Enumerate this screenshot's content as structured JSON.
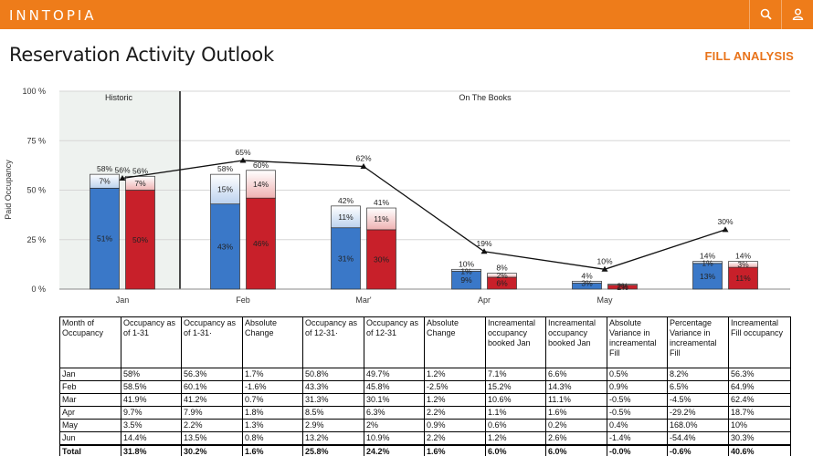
{
  "app": {
    "logo": "INNTOPIA",
    "search_icon": "search-icon",
    "user_icon": "user-icon",
    "brand_color": "#ee7c1a"
  },
  "page": {
    "title": "Reservation Activity Outlook",
    "fill_link": "FILL ANALYSIS"
  },
  "chart_data": {
    "type": "bar",
    "ylabel": "Paid Occupancy",
    "ylim": [
      0,
      100
    ],
    "yticks": [
      "0 %",
      "25 %",
      "50 %",
      "75 %",
      "100 %"
    ],
    "sections": [
      "Historic",
      "On The Books"
    ],
    "categories": [
      "Jan",
      "Feb",
      "Mar'",
      "Apr",
      "May",
      ""
    ],
    "series": [
      {
        "color": "#3a78c8",
        "stacks": [
          {
            "base": 51,
            "top": 7,
            "base_label": "51%",
            "top_label": "7%",
            "total_label": "58%"
          },
          {
            "base": 43,
            "top": 15,
            "base_label": "43%",
            "top_label": "15%",
            "total_label": "58%"
          },
          {
            "base": 31,
            "top": 11,
            "base_label": "31%",
            "top_label": "11%",
            "total_label": "42%"
          },
          {
            "base": 9,
            "top": 1,
            "base_label": "9%",
            "top_label": "1%",
            "total_label": "10%"
          },
          {
            "base": 3,
            "top": 1,
            "base_label": "",
            "top_label": "3%",
            "total_label": "4%"
          },
          {
            "base": 13,
            "top": 1,
            "base_label": "13%",
            "top_label": "1%",
            "total_label": "14%"
          }
        ]
      },
      {
        "color": "#c8202a",
        "stacks": [
          {
            "base": 50,
            "top": 7,
            "base_label": "50%",
            "top_label": "7%",
            "total_label": "56%"
          },
          {
            "base": 46,
            "top": 14,
            "base_label": "46%",
            "top_label": "14%",
            "total_label": "60%"
          },
          {
            "base": 30,
            "top": 11,
            "base_label": "30%",
            "top_label": "11%",
            "total_label": "41%"
          },
          {
            "base": 6,
            "top": 2,
            "base_label": "6%",
            "top_label": "2%",
            "total_label": "8%"
          },
          {
            "base": 2,
            "top": 0.5,
            "base_label": "2%",
            "top_label": "2%",
            "total_label": ""
          },
          {
            "base": 11,
            "top": 3,
            "base_label": "11%",
            "top_label": "3%",
            "total_label": "14%"
          }
        ]
      }
    ],
    "line": {
      "values": [
        56,
        65,
        62,
        19,
        10,
        30
      ],
      "labels": [
        "56%",
        "65%",
        "62%",
        "19%",
        "10%",
        "30%"
      ]
    }
  },
  "table": {
    "headers": [
      "Month of Occupancy",
      "Occupancy as of 1-31",
      "Occupancy as of 1-31·",
      "Absolute Change",
      "Occupancy as of 12-31·",
      "Occupancy as of 12-31",
      "Absolute Change",
      "Increamental occupancy booked Jan",
      "Increamental occupancy booked Jan",
      "Absolute Variance in increamental Fill",
      "Percentage Variance in increamental Fill",
      "Increamental Fill occupancy"
    ],
    "rows": [
      [
        "Jan",
        "58%",
        "56.3%",
        "1.7%",
        "50.8%",
        "49.7%",
        "1.2%",
        "7.1%",
        "6.6%",
        "0.5%",
        "8.2%",
        "56.3%"
      ],
      [
        "Feb",
        "58.5%",
        "60.1%",
        "-1.6%",
        "43.3%",
        "45.8%",
        "-2.5%",
        "15.2%",
        "14.3%",
        "0.9%",
        "6.5%",
        "64.9%"
      ],
      [
        "Mar",
        "41.9%",
        "41.2%",
        "0.7%",
        "31.3%",
        "30.1%",
        "1.2%",
        "10.6%",
        "11.1%",
        "-0.5%",
        "-4.5%",
        "62.4%"
      ],
      [
        "Apr",
        "9.7%",
        "7.9%",
        "1.8%",
        "8.5%",
        "6.3%",
        "2.2%",
        "1.1%",
        "1.6%",
        "-0.5%",
        "-29.2%",
        "18.7%"
      ],
      [
        "May",
        "3.5%",
        "2.2%",
        "1.3%",
        "2.9%",
        "2%",
        "0.9%",
        "0.6%",
        "0.2%",
        "0.4%",
        "168.0%",
        "10%"
      ],
      [
        "Jun",
        "14.4%",
        "13.5%",
        "0.8%",
        "13.2%",
        "10.9%",
        "2.2%",
        "1.2%",
        "2.6%",
        "-1.4%",
        "-54.4%",
        "30.3%"
      ]
    ],
    "total": [
      "Total",
      "31.8%",
      "30.2%",
      "1.6%",
      "25.8%",
      "24.2%",
      "1.6%",
      "6.0%",
      "6.0%",
      "-0.0%",
      "-0.6%",
      "40.6%"
    ]
  }
}
